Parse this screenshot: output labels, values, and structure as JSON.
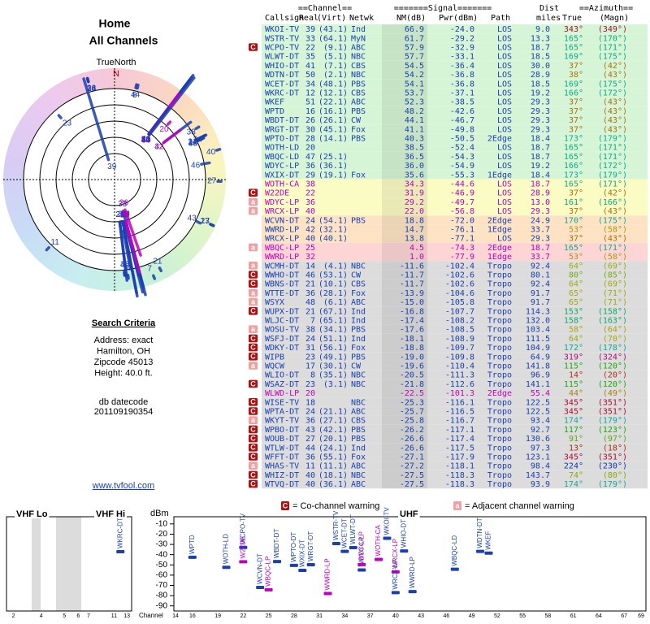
{
  "header": {
    "title": "Home",
    "subtitle": "All Channels"
  },
  "polar": {
    "north_label": "TrueNorth",
    "north_mark": "N"
  },
  "search": {
    "title": "Search Criteria",
    "lines": [
      "Address: exact",
      "Hamilton, OH",
      "Zipcode 45013",
      "Height: 40.0 ft."
    ],
    "datecode_label": "db datecode",
    "datecode": "201109190354",
    "link": "www.tvfool.com"
  },
  "table": {
    "group_headers": [
      "==Channel==",
      "=======Signal=======",
      "Dist",
      "==Azimuth=="
    ],
    "headers": [
      "Callsign",
      "Real",
      "(Virt)",
      "Netwk",
      "NM(dB)",
      "Pwr(dBm)",
      "Path",
      "miles",
      "True",
      "(Magn)"
    ],
    "rows": [
      {
        "cells": [
          "WKOI-TV",
          "39",
          "(43.1)",
          "Ind",
          "66.9",
          "-24.0",
          "LOS",
          "9.0",
          "343°",
          "(349°)"
        ],
        "bg": "#d6f5d6",
        "color": "#1a3fb0",
        "flag": null
      },
      {
        "cells": [
          "WSTR-TV",
          "33",
          "(64.1)",
          "MyN",
          "61.7",
          "-29.2",
          "LOS",
          "13.3",
          "165°",
          "(170°)"
        ],
        "bg": "#d6f5d6",
        "color": "#1a3fb0",
        "flag": null
      },
      {
        "cells": [
          "WCPO-TV",
          "22",
          "(9.1)",
          "ABC",
          "57.9",
          "-32.9",
          "LOS",
          "18.7",
          "165°",
          "(171°)"
        ],
        "bg": "#d6f5d6",
        "color": "#1a3fb0",
        "flag": "C"
      },
      {
        "cells": [
          "WLWT-DT",
          "35",
          "(5.1)",
          "NBC",
          "57.7",
          "-33.1",
          "LOS",
          "18.5",
          "169°",
          "(175°)"
        ],
        "bg": "#d6f5d6",
        "color": "#1a3fb0",
        "flag": null
      },
      {
        "cells": [
          "WHIO-DT",
          "41",
          "(7.1)",
          "CBS",
          "54.5",
          "-36.4",
          "LOS",
          "30.0",
          "37°",
          "(42°)"
        ],
        "bg": "#d6f5d6",
        "color": "#1a3fb0",
        "flag": null
      },
      {
        "cells": [
          "WDTN-DT",
          "50",
          "(2.1)",
          "NBC",
          "54.2",
          "-36.8",
          "LOS",
          "28.9",
          "38°",
          "(43°)"
        ],
        "bg": "#d6f5d6",
        "color": "#1a3fb0",
        "flag": null
      },
      {
        "cells": [
          "WCET-DT",
          "34",
          "(48.1)",
          "PBS",
          "54.1",
          "-36.8",
          "LOS",
          "18.5",
          "169°",
          "(175°)"
        ],
        "bg": "#d6f5d6",
        "color": "#1a3fb0",
        "flag": null
      },
      {
        "cells": [
          "WKRC-DT",
          "12",
          "(12.1)",
          "CBS",
          "53.7",
          "-37.1",
          "LOS",
          "19.2",
          "166°",
          "(172°)"
        ],
        "bg": "#d6f5d6",
        "color": "#1a3fb0",
        "flag": null
      },
      {
        "cells": [
          "WKEF",
          "51",
          "(22.1)",
          "ABC",
          "52.3",
          "-38.5",
          "LOS",
          "29.3",
          "37°",
          "(43°)"
        ],
        "bg": "#d6f5d6",
        "color": "#1a3fb0",
        "flag": null
      },
      {
        "cells": [
          "WPTD",
          "16",
          "(16.1)",
          "PBS",
          "48.2",
          "-42.6",
          "LOS",
          "29.3",
          "37°",
          "(43°)"
        ],
        "bg": "#d6f5d6",
        "color": "#1a3fb0",
        "flag": null
      },
      {
        "cells": [
          "WBDT-DT",
          "26",
          "(26.1)",
          "CW",
          "44.1",
          "-46.7",
          "LOS",
          "29.3",
          "37°",
          "(43°)"
        ],
        "bg": "#d6f5d6",
        "color": "#1a3fb0",
        "flag": null
      },
      {
        "cells": [
          "WRGT-DT",
          "30",
          "(45.1)",
          "Fox",
          "41.1",
          "-49.8",
          "LOS",
          "29.3",
          "37°",
          "(43°)"
        ],
        "bg": "#d6f5d6",
        "color": "#1a3fb0",
        "flag": null
      },
      {
        "cells": [
          "WPTO-DT",
          "28",
          "(14.1)",
          "PBS",
          "40.3",
          "-50.5",
          "2Edge",
          "18.4",
          "173°",
          "(179°)"
        ],
        "bg": "#d6f5d6",
        "color": "#1a3fb0",
        "flag": null
      },
      {
        "cells": [
          "WOTH-LD",
          "20",
          null,
          null,
          "38.5",
          "-52.4",
          "LOS",
          "18.7",
          "165°",
          "(171°)"
        ],
        "bg": "#d6f5d6",
        "color": "#1a3fb0",
        "flag": null
      },
      {
        "cells": [
          "WBQC-LD",
          "47",
          "(25.1)",
          null,
          "36.5",
          "-54.3",
          "LOS",
          "18.7",
          "165°",
          "(171°)"
        ],
        "bg": "#d6f5d6",
        "color": "#1a3fb0",
        "flag": null
      },
      {
        "cells": [
          "WDYC-LP",
          "36",
          "(36.1)",
          null,
          "36.0",
          "-54.9",
          "LOS",
          "19.2",
          "166°",
          "(172°)"
        ],
        "bg": "#d6f5d6",
        "color": "#1a3fb0",
        "flag": null
      },
      {
        "cells": [
          "WXIX-DT",
          "29",
          "(19.1)",
          "Fox",
          "35.6",
          "-55.3",
          "1Edge",
          "18.4",
          "173°",
          "(179°)"
        ],
        "bg": "#d6f5d6",
        "color": "#1a3fb0",
        "flag": null
      },
      {
        "cells": [
          "WOTH-CA",
          "38",
          null,
          null,
          "34.3",
          "-44.6",
          "LOS",
          "18.7",
          "165°",
          "(171°)"
        ],
        "bg": "#fbfbc4",
        "color": "#c000c0",
        "flag": null
      },
      {
        "cells": [
          "W22DE",
          "22",
          null,
          null,
          "31.9",
          "-46.9",
          "LOS",
          "28.9",
          "37°",
          "(42°)"
        ],
        "bg": "#fbfbc4",
        "color": "#c000c0",
        "flag": "C"
      },
      {
        "cells": [
          "WDYC-LP",
          "36",
          null,
          null,
          "29.2",
          "-49.7",
          "LOS",
          "13.0",
          "161°",
          "(166°)"
        ],
        "bg": "#fbfbc4",
        "color": "#c000c0",
        "flag": "a"
      },
      {
        "cells": [
          "WRCX-LP",
          "40",
          null,
          null,
          "22.0",
          "-56.8",
          "LOS",
          "29.3",
          "37°",
          "(43°)"
        ],
        "bg": "#fbfbc4",
        "color": "#c000c0",
        "flag": "a"
      },
      {
        "cells": [
          "WCVN-DT",
          "24",
          "(54.1)",
          "PBS",
          "18.8",
          "-72.0",
          "2Edge",
          "24.9",
          "170°",
          "(175°)"
        ],
        "bg": "#fde3c4",
        "color": "#1a3fb0",
        "flag": null
      },
      {
        "cells": [
          "WWRD-LP",
          "42",
          "(32.1)",
          null,
          "14.7",
          "-76.1",
          "1Edge",
          "33.7",
          "53°",
          "(58°)"
        ],
        "bg": "#fde3c4",
        "color": "#1a3fb0",
        "flag": null
      },
      {
        "cells": [
          "WRCX-LP",
          "40",
          "(40.1)",
          null,
          "13.8",
          "-77.1",
          "LOS",
          "29.3",
          "37°",
          "(43°)"
        ],
        "bg": "#fde3c4",
        "color": "#1a3fb0",
        "flag": null
      },
      {
        "cells": [
          "WBQC-LP",
          "25",
          null,
          null,
          "4.5",
          "-74.3",
          "2Edge",
          "18.7",
          "165°",
          "(171°)"
        ],
        "bg": "#fdd5d5",
        "color": "#c000c0",
        "flag": "a"
      },
      {
        "cells": [
          "WWRD-LP",
          "32",
          null,
          null,
          "1.0",
          "-77.9",
          "1Edge",
          "33.7",
          "53°",
          "(58°)"
        ],
        "bg": "#fdd5d5",
        "color": "#c000c0",
        "flag": null
      },
      {
        "cells": [
          "WCMH-DT",
          "14",
          "(4.1)",
          "NBC",
          "-11.6",
          "-102.4",
          "Tropo",
          "92.4",
          "64°",
          "(69°)"
        ],
        "bg": "#dcdcdc",
        "color": "#1a3fb0",
        "flag": "a"
      },
      {
        "cells": [
          "WWHO-DT",
          "46",
          "(53.1)",
          "CW",
          "-11.7",
          "-102.6",
          "Tropo",
          "80.1",
          "80°",
          "(85°)"
        ],
        "bg": "#dcdcdc",
        "color": "#1a3fb0",
        "flag": "C"
      },
      {
        "cells": [
          "WBNS-DT",
          "21",
          "(10.1)",
          "CBS",
          "-11.7",
          "-102.6",
          "Tropo",
          "92.4",
          "64°",
          "(69°)"
        ],
        "bg": "#dcdcdc",
        "color": "#1a3fb0",
        "flag": "C"
      },
      {
        "cells": [
          "WTTE-DT",
          "36",
          "(28.1)",
          "Fox",
          "-13.9",
          "-104.6",
          "Tropo",
          "91.7",
          "65°",
          "(71°)"
        ],
        "bg": "#dcdcdc",
        "color": "#1a3fb0",
        "flag": "a"
      },
      {
        "cells": [
          "WSYX",
          "48",
          "(6.1)",
          "ABC",
          "-15.0",
          "-105.8",
          "Tropo",
          "91.7",
          "65°",
          "(71°)"
        ],
        "bg": "#dcdcdc",
        "color": "#1a3fb0",
        "flag": "a"
      },
      {
        "cells": [
          "WUPX-DT",
          "21",
          "(67.1)",
          "Ind",
          "-16.8",
          "-107.7",
          "Tropo",
          "114.3",
          "153°",
          "(158°)"
        ],
        "bg": "#dcdcdc",
        "color": "#1a3fb0",
        "flag": "C"
      },
      {
        "cells": [
          "WLJC-DT",
          "7",
          "(65.1)",
          "Ind",
          "-17.4",
          "-108.2",
          "Tropo",
          "132.0",
          "158°",
          "(163°)"
        ],
        "bg": "#dcdcdc",
        "color": "#1a3fb0",
        "flag": null
      },
      {
        "cells": [
          "WOSU-TV",
          "38",
          "(34.1)",
          "PBS",
          "-17.6",
          "-108.5",
          "Tropo",
          "103.4",
          "58°",
          "(64°)"
        ],
        "bg": "#dcdcdc",
        "color": "#1a3fb0",
        "flag": "a"
      },
      {
        "cells": [
          "WSFJ-DT",
          "24",
          "(51.1)",
          "Ind",
          "-18.1",
          "-108.9",
          "Tropo",
          "111.5",
          "64°",
          "(70°)"
        ],
        "bg": "#dcdcdc",
        "color": "#1a3fb0",
        "flag": "C"
      },
      {
        "cells": [
          "WDKY-DT",
          "31",
          "(56.1)",
          "Fox",
          "-18.8",
          "-109.7",
          "Tropo",
          "104.9",
          "172°",
          "(178°)"
        ],
        "bg": "#dcdcdc",
        "color": "#1a3fb0",
        "flag": "C"
      },
      {
        "cells": [
          "WIPB",
          "23",
          "(49.1)",
          "PBS",
          "-19.0",
          "-109.8",
          "Tropo",
          "64.9",
          "319°",
          "(324°)"
        ],
        "bg": "#dcdcdc",
        "color": "#1a3fb0",
        "flag": "C"
      },
      {
        "cells": [
          "WQCW",
          "17",
          "(30.1)",
          "CW",
          "-19.6",
          "-110.4",
          "Tropo",
          "141.8",
          "115°",
          "(120°)"
        ],
        "bg": "#dcdcdc",
        "color": "#1a3fb0",
        "flag": "a"
      },
      {
        "cells": [
          "WLIO-DT",
          "8",
          "(35.1)",
          "NBC",
          "-20.5",
          "-111.3",
          "Tropo",
          "96.9",
          "14°",
          "(20°)"
        ],
        "bg": "#dcdcdc",
        "color": "#1a3fb0",
        "flag": null
      },
      {
        "cells": [
          "WSAZ-DT",
          "23",
          "(3.1)",
          "NBC",
          "-21.8",
          "-112.6",
          "Tropo",
          "141.1",
          "115°",
          "(120°)"
        ],
        "bg": "#dcdcdc",
        "color": "#1a3fb0",
        "flag": "C"
      },
      {
        "cells": [
          "WLWD-LP",
          "20",
          null,
          null,
          "-22.5",
          "-101.3",
          "2Edge",
          "55.4",
          "44°",
          "(49°)"
        ],
        "bg": "#dcdcdc",
        "color": "#c000c0",
        "flag": null
      },
      {
        "cells": [
          "WISE-TV",
          "18",
          null,
          "NBC",
          "-25.3",
          "-116.1",
          "Tropo",
          "122.5",
          "345°",
          "(351°)"
        ],
        "bg": "#dcdcdc",
        "color": "#1a3fb0",
        "flag": "C"
      },
      {
        "cells": [
          "WPTA-DT",
          "24",
          "(21.1)",
          "ABC",
          "-25.7",
          "-116.5",
          "Tropo",
          "122.5",
          "345°",
          "(351°)"
        ],
        "bg": "#dcdcdc",
        "color": "#1a3fb0",
        "flag": "C"
      },
      {
        "cells": [
          "WKYT-TV",
          "36",
          "(27.1)",
          "CBS",
          "-25.8",
          "-116.7",
          "Tropo",
          "93.4",
          "174°",
          "(179°)"
        ],
        "bg": "#dcdcdc",
        "color": "#1a3fb0",
        "flag": "a"
      },
      {
        "cells": [
          "WPBO-DT",
          "43",
          "(42.1)",
          "PBS",
          "-26.2",
          "-117.1",
          "Tropo",
          "92.7",
          "117°",
          "(123°)"
        ],
        "bg": "#dcdcdc",
        "color": "#1a3fb0",
        "flag": "C"
      },
      {
        "cells": [
          "WOUB-DT",
          "27",
          "(20.1)",
          "PBS",
          "-26.6",
          "-117.4",
          "Tropo",
          "130.6",
          "91°",
          "(97°)"
        ],
        "bg": "#dcdcdc",
        "color": "#1a3fb0",
        "flag": "C"
      },
      {
        "cells": [
          "WTLW-DT",
          "44",
          "(24.1)",
          "Ind",
          "-26.6",
          "-117.5",
          "Tropo",
          "97.3",
          "13°",
          "(18°)"
        ],
        "bg": "#dcdcdc",
        "color": "#1a3fb0",
        "flag": "C"
      },
      {
        "cells": [
          "WFFT-DT",
          "36",
          "(55.1)",
          "Fox",
          "-27.1",
          "-117.9",
          "Tropo",
          "123.1",
          "345°",
          "(351°)"
        ],
        "bg": "#dcdcdc",
        "color": "#1a3fb0",
        "flag": "C"
      },
      {
        "cells": [
          "WHAS-TV",
          "11",
          "(11.1)",
          "ABC",
          "-27.2",
          "-118.1",
          "Tropo",
          "98.4",
          "224°",
          "(230°)"
        ],
        "bg": "#dcdcdc",
        "color": "#1a3fb0",
        "flag": "a"
      },
      {
        "cells": [
          "WHIZ-DT",
          "40",
          "(18.1)",
          "NBC",
          "-27.5",
          "-118.3",
          "Tropo",
          "143.7",
          "74°",
          "(80°)"
        ],
        "bg": "#dcdcdc",
        "color": "#1a3fb0",
        "flag": "C"
      },
      {
        "cells": [
          "WTVQ-DT",
          "40",
          "(36.1)",
          "ABC",
          "-27.5",
          "-118.3",
          "Tropo",
          "93.9",
          "174°",
          "(179°)"
        ],
        "bg": "#dcdcdc",
        "color": "#1a3fb0",
        "flag": "C"
      }
    ]
  },
  "spectrum": {
    "legend": [
      {
        "flag": "C",
        "text": "= Co-channel warning"
      },
      {
        "flag": "a",
        "text": "= Adjacent channel warning"
      }
    ],
    "panels": [
      "VHF Lo",
      "VHF Hi",
      "UHF"
    ],
    "ylabel": "dBm",
    "xlabel": "Channel",
    "ylim": [
      -3,
      -95
    ],
    "yticks": [
      -10,
      -20,
      -30,
      -40,
      -50,
      -60,
      -70,
      -80,
      -90
    ],
    "vhf_xticks": [
      2,
      4,
      5,
      6,
      7,
      11,
      13
    ],
    "uhf_xlim": [
      14,
      69
    ],
    "uhf_xticks": [
      14,
      16,
      19,
      22,
      25,
      28,
      31,
      34,
      37,
      40,
      43,
      46,
      49,
      52,
      55,
      58,
      61,
      64,
      67,
      69
    ]
  }
}
